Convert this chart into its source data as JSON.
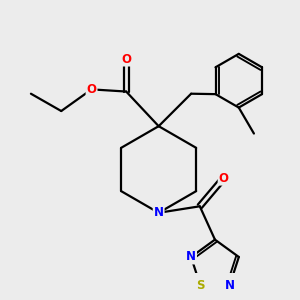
{
  "bg_color": "#ececec",
  "line_color": "#000000",
  "bond_width": 1.6,
  "atom_colors": {
    "O": "#ff0000",
    "N": "#0000ff",
    "S": "#aaaa00",
    "C": "#000000"
  },
  "font_size": 8.5
}
